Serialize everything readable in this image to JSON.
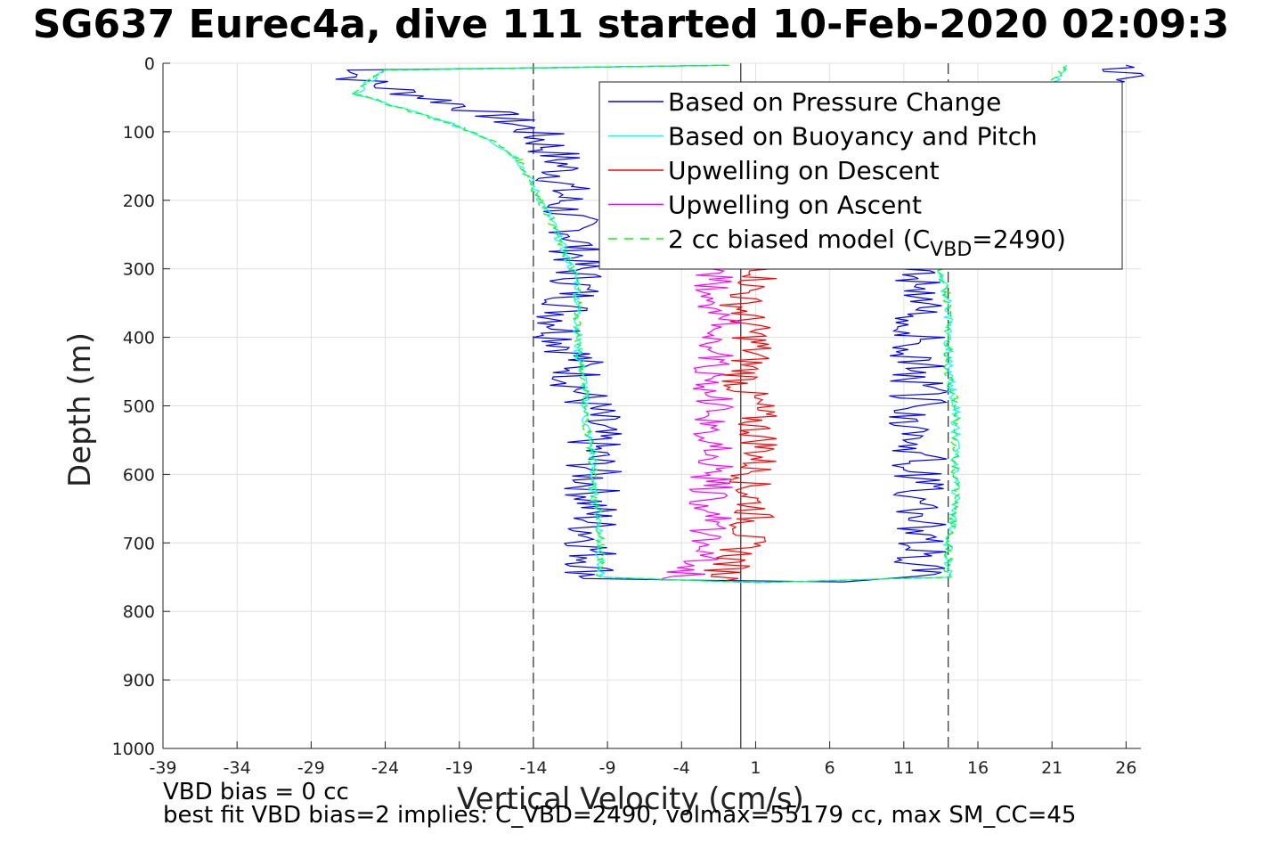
{
  "chart_data": {
    "type": "line",
    "title": "SG637 Eurec4a, dive 111 started 10-Feb-2020 02:09:3",
    "xlabel": "Vertical Velocity (cm/s)",
    "ylabel": "Depth (m)",
    "xlim": [
      -39,
      27
    ],
    "ylim": [
      0,
      1000
    ],
    "y_reversed": true,
    "xticks": [
      -39,
      -34,
      -29,
      -24,
      -19,
      -14,
      -9,
      -4,
      1,
      6,
      11,
      16,
      21,
      26
    ],
    "yticks": [
      0,
      100,
      200,
      300,
      400,
      500,
      600,
      700,
      800,
      900,
      1000
    ],
    "grid": true,
    "legend_position": "top-right",
    "reference_lines": {
      "solid_x": [
        0
      ],
      "dashed_x": [
        -14,
        14
      ]
    },
    "series": [
      {
        "name": "Based on Pressure Change",
        "color": "#0000ff",
        "points": [
          [
            -1,
            3
          ],
          [
            -25,
            10
          ],
          [
            -26,
            20
          ],
          [
            -25,
            30
          ],
          [
            -22,
            45
          ],
          [
            -19,
            60
          ],
          [
            -16,
            80
          ],
          [
            -14,
            100
          ],
          [
            -13,
            120
          ],
          [
            -12,
            150
          ],
          [
            -12,
            180
          ],
          [
            -12,
            210
          ],
          [
            -11,
            250
          ],
          [
            -11,
            290
          ],
          [
            -11,
            330
          ],
          [
            -12,
            370
          ],
          [
            -12,
            400
          ],
          [
            -11,
            430
          ],
          [
            -11,
            470
          ],
          [
            -10,
            510
          ],
          [
            -10,
            550
          ],
          [
            -10,
            590
          ],
          [
            -10,
            630
          ],
          [
            -10,
            670
          ],
          [
            -10,
            710
          ],
          [
            -10,
            740
          ],
          [
            -10,
            752
          ],
          [
            6,
            757
          ],
          [
            11,
            752
          ],
          [
            12,
            740
          ],
          [
            12,
            710
          ],
          [
            12,
            670
          ],
          [
            12,
            630
          ],
          [
            12,
            590
          ],
          [
            12,
            550
          ],
          [
            12,
            510
          ],
          [
            12,
            470
          ],
          [
            12,
            430
          ],
          [
            12,
            400
          ],
          [
            12,
            360
          ],
          [
            12,
            320
          ],
          [
            12,
            300
          ],
          [
            26,
            3
          ]
        ]
      },
      {
        "name": "Based on Buoyancy and Pitch",
        "color": "#00ffff",
        "points": [
          [
            -1,
            3
          ],
          [
            -24,
            10
          ],
          [
            -25,
            25
          ],
          [
            -26,
            45
          ],
          [
            -23,
            65
          ],
          [
            -20,
            85
          ],
          [
            -17,
            110
          ],
          [
            -15,
            140
          ],
          [
            -14,
            180
          ],
          [
            -13,
            220
          ],
          [
            -12,
            270
          ],
          [
            -11,
            320
          ],
          [
            -11,
            370
          ],
          [
            -11,
            420
          ],
          [
            -10.5,
            470
          ],
          [
            -10.5,
            520
          ],
          [
            -10,
            570
          ],
          [
            -10,
            620
          ],
          [
            -9.5,
            670
          ],
          [
            -9.5,
            720
          ],
          [
            -9.5,
            750
          ],
          [
            1,
            758
          ],
          [
            14,
            750
          ],
          [
            14,
            700
          ],
          [
            14.5,
            650
          ],
          [
            14.5,
            600
          ],
          [
            14.5,
            550
          ],
          [
            14.5,
            500
          ],
          [
            14,
            450
          ],
          [
            14,
            400
          ],
          [
            14,
            350
          ],
          [
            13.5,
            300
          ],
          [
            13.5,
            250
          ],
          [
            22,
            3
          ]
        ]
      },
      {
        "name": "Upwelling on Descent",
        "color": "#ff0000",
        "points": [
          [
            2,
            300
          ],
          [
            1,
            320
          ],
          [
            0,
            350
          ],
          [
            0.5,
            380
          ],
          [
            1,
            410
          ],
          [
            0.5,
            440
          ],
          [
            0,
            470
          ],
          [
            1,
            500
          ],
          [
            1,
            530
          ],
          [
            1.5,
            560
          ],
          [
            1,
            590
          ],
          [
            0.5,
            620
          ],
          [
            1,
            650
          ],
          [
            0.5,
            680
          ],
          [
            0,
            710
          ],
          [
            -1,
            740
          ],
          [
            -1,
            755
          ]
        ]
      },
      {
        "name": "Upwelling on Ascent",
        "color": "#ff00ff",
        "points": [
          [
            -4,
            755
          ],
          [
            -3,
            730
          ],
          [
            -2,
            700
          ],
          [
            -2,
            670
          ],
          [
            -2,
            640
          ],
          [
            -2,
            610
          ],
          [
            -1.5,
            580
          ],
          [
            -2,
            550
          ],
          [
            -2,
            520
          ],
          [
            -2,
            490
          ],
          [
            -2,
            460
          ],
          [
            -2,
            430
          ],
          [
            -1.5,
            400
          ],
          [
            -1.5,
            370
          ],
          [
            -2,
            340
          ],
          [
            -2,
            300
          ]
        ]
      },
      {
        "name": "2 cc biased model (C",
        "name_sub": "VBD",
        "name_rest": "=2490)",
        "color": "#00ff00",
        "dashed": true,
        "points": [
          [
            -1,
            3
          ],
          [
            -24,
            10
          ],
          [
            -25,
            25
          ],
          [
            -26,
            45
          ],
          [
            -23,
            65
          ],
          [
            -20,
            85
          ],
          [
            -17,
            110
          ],
          [
            -15,
            140
          ],
          [
            -14,
            180
          ],
          [
            -13,
            220
          ],
          [
            -12,
            270
          ],
          [
            -11,
            320
          ],
          [
            -11,
            370
          ],
          [
            -11,
            420
          ],
          [
            -10.5,
            470
          ],
          [
            -10.5,
            520
          ],
          [
            -10,
            570
          ],
          [
            -10,
            620
          ],
          [
            -9.5,
            670
          ],
          [
            -9.5,
            720
          ],
          [
            -9.5,
            750
          ],
          [
            1,
            758
          ],
          [
            14,
            750
          ],
          [
            14,
            700
          ],
          [
            14.5,
            650
          ],
          [
            14.5,
            600
          ],
          [
            14.5,
            550
          ],
          [
            14.5,
            500
          ],
          [
            14,
            450
          ],
          [
            14,
            400
          ],
          [
            14,
            350
          ],
          [
            13.5,
            300
          ],
          [
            13.5,
            250
          ],
          [
            22,
            3
          ]
        ]
      }
    ]
  },
  "footer": {
    "line1": "VBD bias = 0 cc",
    "line2": "best fit VBD bias=2 implies: C_VBD=2490, volmax=55179 cc, max SM_CC=45"
  }
}
